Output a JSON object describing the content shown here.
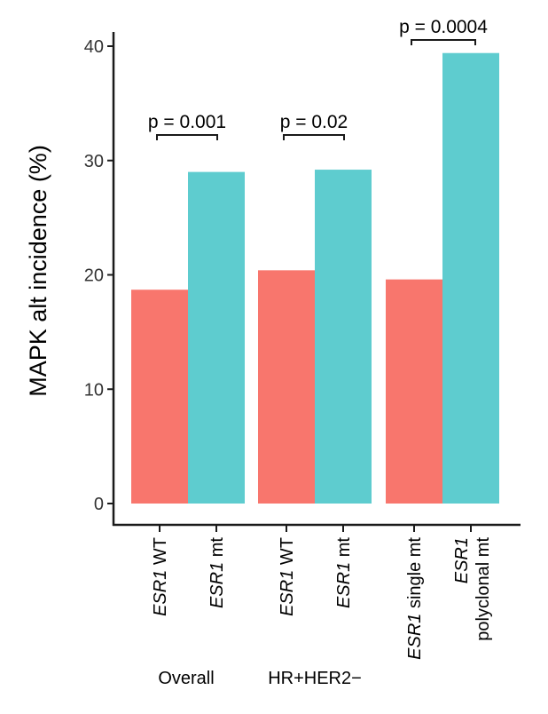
{
  "chart_data": {
    "type": "bar",
    "ylabel": "MAPK alt incidence (%)",
    "ylim": [
      0,
      40
    ],
    "yticks": [
      "0",
      "10",
      "20",
      "30",
      "40"
    ],
    "grid": false,
    "categories": [
      {
        "gene": "ESR1",
        "suffix": " WT",
        "line2": ""
      },
      {
        "gene": "ESR1",
        "suffix": " mt",
        "line2": ""
      },
      {
        "gene": "ESR1",
        "suffix": " WT",
        "line2": ""
      },
      {
        "gene": "ESR1",
        "suffix": " mt",
        "line2": ""
      },
      {
        "gene": "ESR1",
        "suffix": " single mt",
        "line2": ""
      },
      {
        "gene": "ESR1",
        "suffix": "",
        "line2": "polyclonal mt"
      }
    ],
    "values": [
      18.7,
      29.0,
      20.4,
      29.2,
      19.6,
      39.4
    ],
    "bar_colors": [
      "#F8766D",
      "#5ECCCF",
      "#F8766D",
      "#5ECCCF",
      "#F8766D",
      "#5ECCCF"
    ],
    "groups": [
      "Overall",
      "HR+HER2−",
      ""
    ],
    "comparisons": [
      "p = 0.001",
      "p = 0.02",
      "p = 0.0004"
    ]
  }
}
